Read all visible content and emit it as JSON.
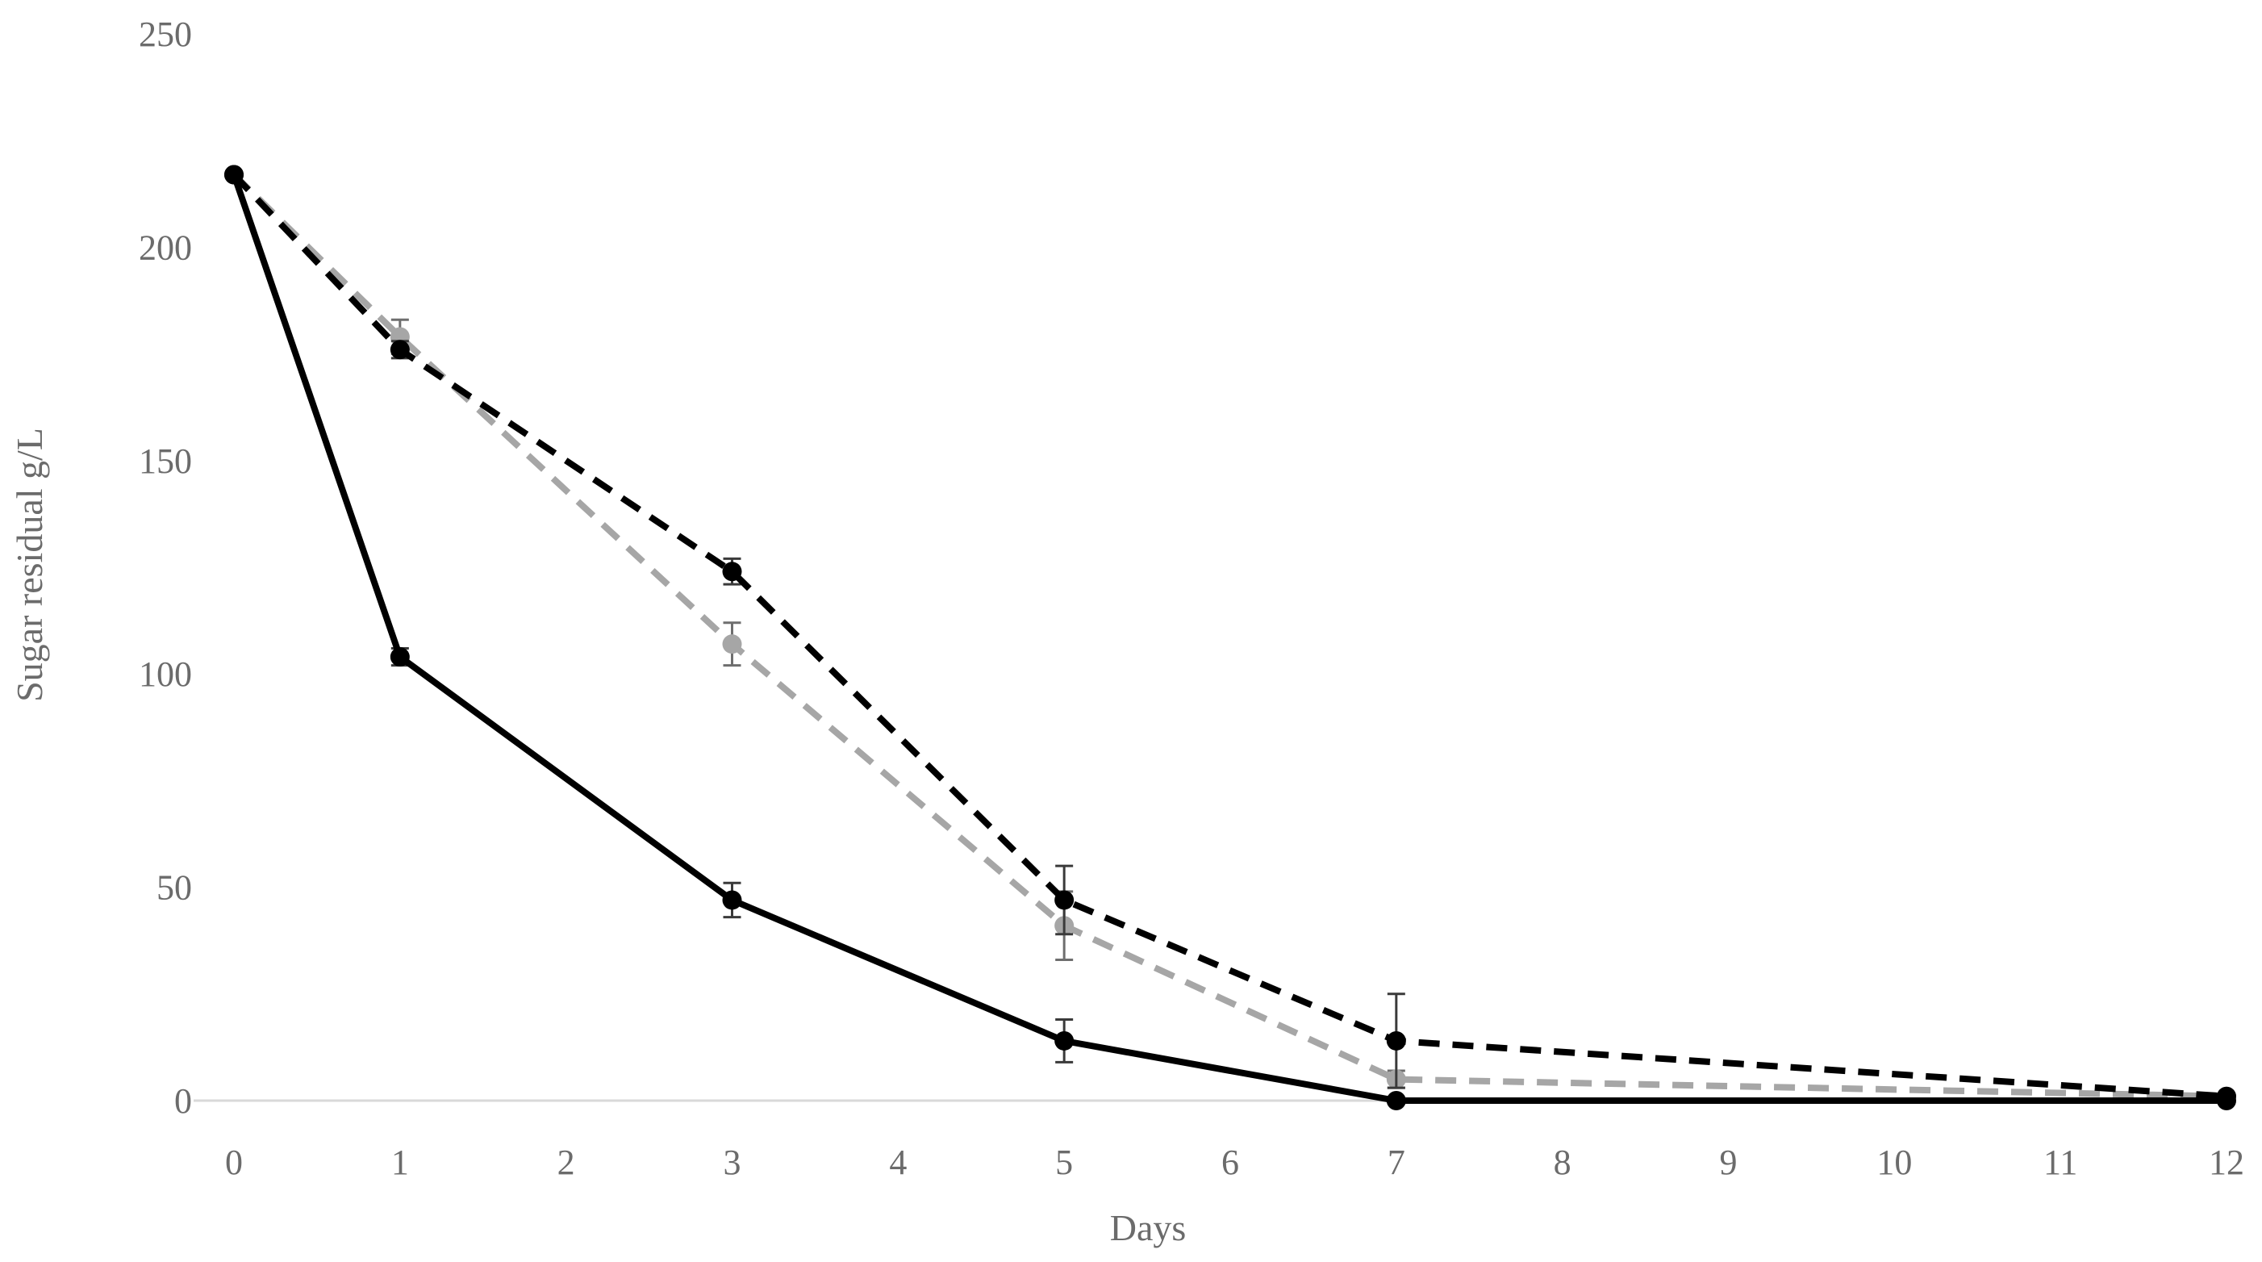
{
  "chart_data": {
    "type": "line",
    "title": "",
    "xlabel": "Days",
    "ylabel": "Sugar residual g/L",
    "xlim": [
      0,
      12
    ],
    "ylim": [
      0,
      250
    ],
    "x_ticks": [
      "0",
      "1",
      "2",
      "3",
      "4",
      "5",
      "6",
      "7",
      "8",
      "9",
      "10",
      "11",
      "12"
    ],
    "y_ticks": [
      "0",
      "50",
      "100",
      "150",
      "200",
      "250"
    ],
    "grid": false,
    "legend": "none",
    "series": [
      {
        "color": "#000000",
        "line_style": "solid",
        "points": [
          {
            "x": 0,
            "y": 217,
            "err": 0
          },
          {
            "x": 1,
            "y": 104,
            "err": 2
          },
          {
            "x": 3,
            "y": 47,
            "err": 4
          },
          {
            "x": 5,
            "y": 14,
            "err": 5
          },
          {
            "x": 7,
            "y": 0,
            "err": 0
          },
          {
            "x": 12,
            "y": 0,
            "err": 0
          }
        ]
      },
      {
        "color": "#000000",
        "line_style": "dashed",
        "points": [
          {
            "x": 0,
            "y": 217,
            "err": 0
          },
          {
            "x": 1,
            "y": 176,
            "err": 2
          },
          {
            "x": 3,
            "y": 124,
            "err": 3
          },
          {
            "x": 5,
            "y": 47,
            "err": 8
          },
          {
            "x": 7,
            "y": 14,
            "err": 11
          },
          {
            "x": 12,
            "y": 1,
            "err": 0
          }
        ]
      },
      {
        "color": "#a6a6a6",
        "line_style": "dashed",
        "points": [
          {
            "x": 0,
            "y": 217,
            "err": 0
          },
          {
            "x": 1,
            "y": 179,
            "err": 4
          },
          {
            "x": 3,
            "y": 107,
            "err": 5
          },
          {
            "x": 5,
            "y": 41,
            "err": 8
          },
          {
            "x": 7,
            "y": 5,
            "err": 2
          },
          {
            "x": 12,
            "y": 1,
            "err": 0
          }
        ]
      }
    ]
  }
}
